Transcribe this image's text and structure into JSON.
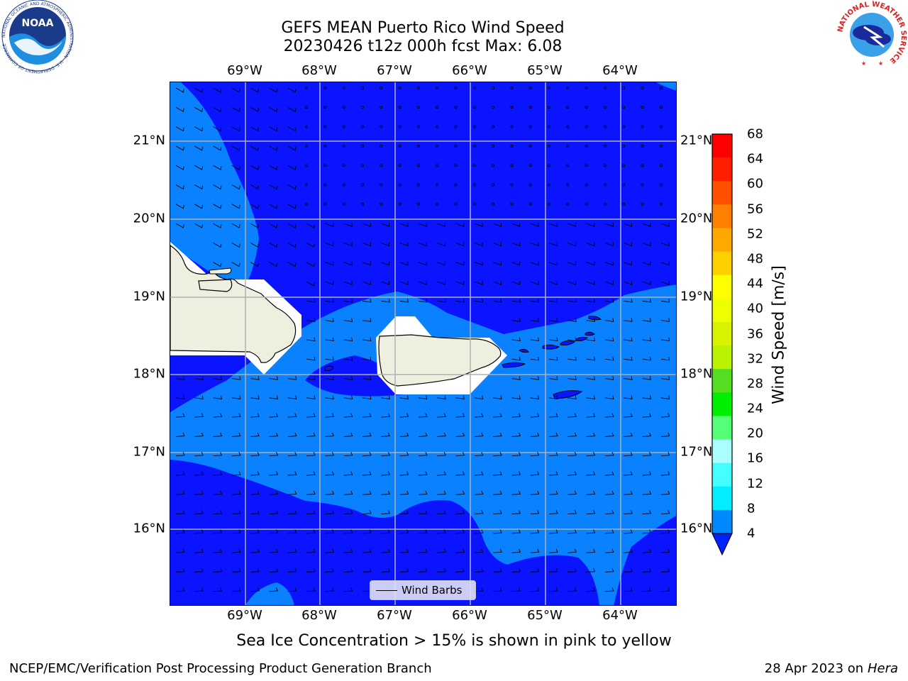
{
  "title_line1": "GEFS MEAN Puerto Rico Wind Speed",
  "title_line2": "20230426 t12z 000h fcst   Max: 6.08",
  "lon_labels": [
    "69°W",
    "68°W",
    "67°W",
    "66°W",
    "65°W",
    "64°W"
  ],
  "lat_labels": [
    "21°N",
    "20°N",
    "19°N",
    "18°N",
    "17°N",
    "16°N"
  ],
  "legend_label": "Wind Barbs",
  "colorbar": {
    "title": "Wind Speed [m/s]",
    "ticks": [
      "68",
      "64",
      "60",
      "56",
      "52",
      "48",
      "44",
      "40",
      "36",
      "32",
      "28",
      "24",
      "20",
      "16",
      "12",
      "8",
      "4"
    ],
    "colors": [
      "#ff0000",
      "#ff2000",
      "#ff5000",
      "#ff8000",
      "#ffa800",
      "#ffd000",
      "#ffff00",
      "#eeff00",
      "#d8f200",
      "#b8f200",
      "#55dd22",
      "#00ee00",
      "#55ff77",
      "#aaffff",
      "#44ffff",
      "#00eeff",
      "#0088ff"
    ],
    "extend_color": "#0022ff"
  },
  "colors": {
    "dark_blue": "#0a14ff",
    "light_blue": "#0a82ff",
    "land": "#efefdf"
  },
  "subtitle": "Sea Ice Concentration > 15% is shown in pink to yellow",
  "footer_left": "NCEP/EMC/Verification Post Processing Product Generation Branch",
  "footer_right_prefix": "28 Apr 2023 on ",
  "footer_right_host": "Hera",
  "logos": {
    "noaa_text": "NOAA",
    "noaa_ring_text": "NATIONAL OCEANIC AND ATMOSPHERIC ADMINISTRATION · U.S. DEPARTMENT OF COMMERCE",
    "nws_ring_text": "NATIONAL WEATHER SERVICE"
  }
}
